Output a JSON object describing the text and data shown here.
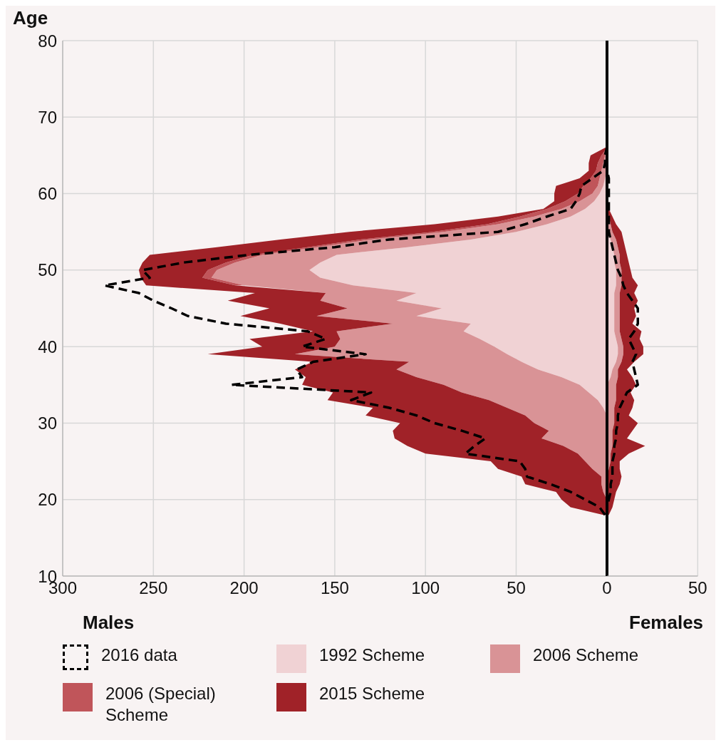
{
  "chart_data": [
    {
      "type": "area",
      "ylabel": "Age",
      "xlabel": "Males",
      "orientation": "horizontal",
      "stacked": true,
      "grid": true,
      "legend": "bottom",
      "x": [
        18,
        19,
        20,
        21,
        22,
        23,
        24,
        25,
        26,
        27,
        28,
        29,
        30,
        31,
        32,
        33,
        34,
        35,
        36,
        37,
        38,
        39,
        40,
        41,
        42,
        43,
        44,
        45,
        46,
        47,
        48,
        49,
        50,
        51,
        52,
        53,
        54,
        55,
        56,
        57,
        58,
        59,
        60,
        61,
        62,
        63,
        64,
        65,
        66
      ],
      "xlim": [
        -300,
        0
      ],
      "xticks": [
        {
          "value": -300,
          "label": "300"
        },
        {
          "value": -250,
          "label": "250"
        },
        {
          "value": -200,
          "label": "200"
        },
        {
          "value": -150,
          "label": "150"
        },
        {
          "value": -100,
          "label": "100"
        },
        {
          "value": -50,
          "label": "50"
        },
        0
      ],
      "ylim": [
        10,
        80
      ],
      "yticks": [
        10,
        20,
        30,
        40,
        50,
        60,
        70,
        80
      ],
      "series": [
        {
          "name": "2016 data",
          "type": "line",
          "line_style": "dashed",
          "color": "#000000",
          "values": [
            -1,
            -4,
            -12,
            -20,
            -31,
            -44,
            -45,
            -48,
            -78,
            -73,
            -67,
            -80,
            -95,
            -105,
            -120,
            -141,
            -130,
            -207,
            -168,
            -171,
            -162,
            -133,
            -168,
            -155,
            -165,
            -210,
            -231,
            -240,
            -250,
            -258,
            -277,
            -252,
            -256,
            -233,
            -197,
            -150,
            -120,
            -60,
            -45,
            -33,
            -20,
            -17,
            -15,
            -14,
            -8,
            -2,
            -1,
            -1,
            0
          ]
        },
        {
          "name": "1992 Scheme",
          "color": "#f0d2d4",
          "values": [
            0,
            0,
            0,
            0,
            0,
            0,
            0,
            0,
            0,
            0,
            0,
            0,
            0,
            0,
            -2,
            -5,
            -10,
            -15,
            -25,
            -38,
            -47,
            -55,
            -62,
            -70,
            -79,
            -75,
            -105,
            -91,
            -116,
            -105,
            -140,
            -158,
            -164,
            -158,
            -149,
            -110,
            -75,
            -50,
            -33,
            -20,
            -12,
            -7,
            -4,
            -2,
            -1,
            0,
            0,
            0,
            0
          ]
        },
        {
          "name": "2006 Scheme",
          "color": "#d99396",
          "values": [
            0,
            0,
            0,
            -2,
            -3,
            -3,
            -8,
            -12,
            -16,
            -24,
            -36,
            -32,
            -40,
            -45,
            -53,
            -60,
            -70,
            -75,
            -80,
            -78,
            -62,
            -117,
            -88,
            -77,
            -70,
            -43,
            -55,
            -52,
            -42,
            -50,
            -60,
            -60,
            -51,
            -47,
            -41,
            -50,
            -55,
            -40,
            -27,
            -20,
            -13,
            -8,
            -4,
            -3,
            -3,
            -3,
            -2,
            -1,
            0
          ]
        },
        {
          "name": "2006 (Special) Scheme",
          "color": "#c0555a",
          "values": [
            null,
            null,
            null,
            null,
            null,
            null,
            null,
            null,
            null,
            null,
            null,
            null,
            null,
            null,
            null,
            null,
            null,
            null,
            null,
            null,
            null,
            null,
            null,
            null,
            null,
            null,
            null,
            null,
            null,
            null,
            -5,
            -5,
            -5,
            -5,
            -5,
            -5,
            -6,
            -6,
            -6,
            -8,
            -8,
            -8,
            -8,
            -8,
            -5,
            -3,
            -3,
            -2,
            0
          ]
        },
        {
          "name": "2015 Scheme",
          "color": "#a02228",
          "values": [
            -2,
            -20,
            -25,
            -26,
            -42,
            -44,
            -52,
            -52,
            -84,
            -86,
            -81,
            -86,
            -74,
            -88,
            -74,
            -89,
            -71,
            -78,
            -61,
            -56,
            -53,
            -48,
            -40,
            -50,
            -13,
            -62,
            -42,
            -43,
            -51,
            -39,
            -49,
            -34,
            -38,
            -46,
            -57,
            -50,
            -44,
            -46,
            -29,
            -12,
            -2,
            -6,
            -13,
            -15,
            -6,
            -4,
            -5,
            -6,
            -1
          ]
        }
      ]
    },
    {
      "type": "area",
      "xlabel": "Females",
      "orientation": "horizontal",
      "stacked": true,
      "grid": true,
      "tick_labels": "x",
      "x": [
        18,
        19,
        20,
        21,
        22,
        23,
        24,
        25,
        26,
        27,
        28,
        29,
        30,
        31,
        32,
        33,
        34,
        35,
        36,
        37,
        38,
        39,
        40,
        41,
        42,
        43,
        44,
        45,
        46,
        47,
        48,
        49,
        50,
        51,
        52,
        53,
        54,
        55,
        56,
        57,
        58,
        59,
        60,
        61,
        62,
        63,
        64,
        65,
        66
      ],
      "xlim": [
        0,
        50
      ],
      "xticks": [
        {
          "value": 0,
          "label": null
        },
        50
      ],
      "ylim": [
        10,
        80
      ],
      "yticks": [
        10,
        20,
        30,
        40,
        50,
        60,
        70,
        80
      ],
      "ref_lines": [
        {
          "axis": "x",
          "value": 0,
          "color": "#000000"
        }
      ],
      "series": [
        {
          "type": "line",
          "line_style": "dashed",
          "color": "#000000",
          "values": [
            0,
            0,
            1,
            2,
            2,
            3,
            3,
            3,
            4,
            4,
            5,
            5,
            6,
            6,
            7,
            9,
            11,
            17,
            16,
            15,
            14,
            16,
            14,
            12,
            15,
            17,
            17,
            17,
            14,
            11,
            9,
            8,
            6,
            5,
            4,
            3,
            2,
            1,
            1,
            1,
            1,
            1,
            1,
            1,
            1,
            0,
            0,
            0,
            0
          ]
        },
        {
          "color": "#f0d2d4",
          "values": [
            0,
            0,
            0,
            0,
            0,
            0,
            0,
            0,
            0,
            0,
            0,
            0,
            0,
            0,
            0,
            0,
            0,
            0,
            2,
            3,
            5,
            6,
            6,
            5,
            4,
            4,
            4,
            4,
            4,
            4,
            5,
            5,
            5,
            4,
            4,
            3,
            2,
            0,
            0,
            0,
            0,
            0,
            0,
            0,
            0,
            0,
            0,
            0,
            0
          ]
        },
        {
          "color": "#d99396",
          "values": [
            0,
            0,
            0,
            0,
            0,
            0,
            1,
            2,
            2,
            3,
            3,
            3,
            4,
            4,
            4,
            5,
            5,
            5,
            4,
            3,
            3,
            3,
            3,
            3,
            3,
            3,
            3,
            3,
            3,
            3,
            3,
            3,
            3,
            3,
            3,
            3,
            3,
            3,
            2,
            1,
            0,
            0,
            0,
            0,
            0,
            0,
            0,
            0,
            0
          ]
        },
        {
          "color": "#a02228",
          "values": [
            1,
            3,
            4,
            5,
            7,
            8,
            6,
            5,
            10,
            18,
            8,
            11,
            13,
            8,
            10,
            10,
            8,
            11,
            8,
            5,
            7,
            11,
            11,
            10,
            12,
            7,
            9,
            8,
            10,
            8,
            9,
            6,
            5,
            5,
            4,
            4,
            4,
            5,
            3,
            2,
            1,
            0,
            0,
            0,
            0,
            0,
            0,
            0,
            0
          ]
        }
      ]
    }
  ]
}
